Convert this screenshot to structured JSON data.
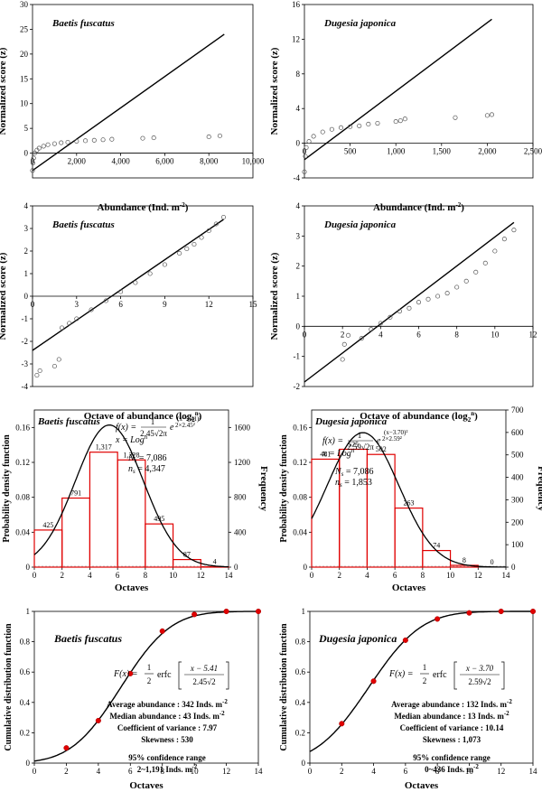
{
  "panels": {
    "p1": {
      "species": "Baetis fuscatus",
      "xlabel": "Abundance (Ind. m",
      "ylabel": "Normalized score (z)",
      "xticks": [
        "0",
        "2,000",
        "4,000",
        "6,000",
        "8,000",
        "10,000"
      ],
      "yticks": [
        "0",
        "5",
        "10",
        "15",
        "20",
        "25",
        "30"
      ]
    },
    "p2": {
      "species": "Dugesia japonica",
      "xlabel": "Abundance (Ind. m",
      "ylabel": "Normalized score (z)",
      "xticks": [
        "0",
        "500",
        "1,000",
        "1,500",
        "2,000",
        "2,500"
      ],
      "yticks": [
        "-4",
        "0",
        "4",
        "8",
        "12",
        "16"
      ]
    },
    "p3": {
      "species": "Baetis fuscatus",
      "xlabel": "Octave of abundance (log",
      "ylabel": "Normalized score (z)",
      "xticks": [
        "0",
        "3",
        "6",
        "9",
        "12",
        "15"
      ],
      "yticks": [
        "-4",
        "-3",
        "-2",
        "-1",
        "0",
        "1",
        "2",
        "3",
        "4"
      ]
    },
    "p4": {
      "species": "Dugesia japonica",
      "xlabel": "Octave of abundance (log",
      "ylabel": "Normalized score (z)",
      "xticks": [
        "0",
        "2",
        "4",
        "6",
        "8",
        "10",
        "12"
      ],
      "yticks": [
        "-2",
        "-1",
        "0",
        "1",
        "2",
        "3",
        "4"
      ]
    },
    "p5": {
      "species": "Baetis fuscatus",
      "xlabel": "Octaves",
      "ylabel": "Probability density function",
      "ylabel2": "Frequency",
      "xticks": [
        "0",
        "2",
        "4",
        "6",
        "8",
        "10",
        "12",
        "14"
      ],
      "yticks": [
        "0",
        "0.04",
        "0.08",
        "0.12",
        "0.16"
      ],
      "y2ticks": [
        "0",
        "400",
        "800",
        "1200",
        "1600"
      ],
      "fx": "f(x) =",
      "formula_coef": "2.45√2π",
      "x_def": "x = Log",
      "Ns": "N",
      "Ns_val": " = 7,086",
      "ns_val": " = 4,347"
    },
    "p6": {
      "species": "Dugesia japonica",
      "xlabel": "Octaves",
      "ylabel": "Probability density function",
      "ylabel2": "Frequency",
      "xticks": [
        "0",
        "2",
        "4",
        "6",
        "8",
        "10",
        "12",
        "14"
      ],
      "yticks": [
        "0",
        "0.04",
        "0.08",
        "0.12",
        "0.16"
      ],
      "y2ticks": [
        "0",
        "100",
        "200",
        "300",
        "400",
        "500",
        "600",
        "700"
      ],
      "fx": "f(x) =",
      "formula_coef": "2.59√2π",
      "x_def": "x = Log",
      "Ns_val": " = 7,086",
      "ns_val": " = 1,853"
    },
    "p7": {
      "species": "Baetis fuscatus",
      "xlabel": "Octaves",
      "ylabel": "Cumulative distribution function",
      "xticks": [
        "0",
        "2",
        "4",
        "6",
        "8",
        "10",
        "12",
        "14"
      ],
      "yticks": [
        "0",
        "0.2",
        "0.4",
        "0.6",
        "0.8",
        "1"
      ],
      "Fx": "F(x) =",
      "erfc": "erfc",
      "num": "x − 5.41",
      "den": "2.45√2",
      "stats": [
        "Average abundance : 342 Inds. m",
        "Median abundance :    43 Inds. m",
        "Coefficient of variance : 7.97",
        "Skewness : 530"
      ],
      "ci_title": "95% confidence range",
      "ci": "2~1,191 Inds. m"
    },
    "p8": {
      "species": "Dugesia japonica",
      "xlabel": "Octaves",
      "ylabel": "Cumulative distribution function",
      "xticks": [
        "0",
        "2",
        "4",
        "6",
        "8",
        "10",
        "12",
        "14"
      ],
      "yticks": [
        "0",
        "0.2",
        "0.4",
        "0.6",
        "0.8",
        "1"
      ],
      "Fx": "F(x) =",
      "erfc": "erfc",
      "num": "x − 3.70",
      "den": "2.59√2",
      "stats": [
        "Average abundance : 132 Inds. m",
        "Median abundance :    13 Inds. m",
        "Coefficient of variance : 10.14",
        "Skewness : 1,073"
      ],
      "ci_title": "95% confidence range",
      "ci": "0~436 Inds. m"
    }
  },
  "chart_data": [
    {
      "type": "scatter",
      "title": "Baetis fuscatus",
      "xlabel": "Abundance (Ind. m-2)",
      "ylabel": "Normalized score (z)",
      "xlim": [
        0,
        10000
      ],
      "ylim": [
        -5,
        30
      ],
      "fit_line": {
        "x": [
          0,
          8700
        ],
        "y": [
          -3.5,
          24
        ]
      },
      "points": {
        "x": [
          0,
          20,
          50,
          100,
          200,
          300,
          500,
          700,
          1000,
          1300,
          1600,
          2000,
          2400,
          2800,
          3200,
          3600,
          5000,
          5500,
          8000,
          8500
        ],
        "y": [
          -3.5,
          -2,
          -1,
          0,
          0.6,
          1,
          1.4,
          1.7,
          1.9,
          2.1,
          2.2,
          2.4,
          2.5,
          2.6,
          2.7,
          2.8,
          3.0,
          3.1,
          3.3,
          3.5
        ]
      }
    },
    {
      "type": "scatter",
      "title": "Dugesia japonica",
      "xlabel": "Abundance (Ind. m-2)",
      "ylabel": "Normalized score (z)",
      "xlim": [
        0,
        2500
      ],
      "ylim": [
        -4,
        16
      ],
      "fit_line": {
        "x": [
          0,
          2050
        ],
        "y": [
          -1.9,
          14.3
        ]
      },
      "points": {
        "x": [
          0,
          10,
          20,
          50,
          100,
          200,
          300,
          400,
          500,
          600,
          700,
          800,
          1000,
          1050,
          1100,
          1650,
          2000,
          2050
        ],
        "y": [
          -3.3,
          -1.5,
          -0.5,
          0.2,
          0.8,
          1.3,
          1.6,
          1.8,
          1.9,
          2.0,
          2.2,
          2.3,
          2.5,
          2.6,
          2.8,
          2.95,
          3.2,
          3.3
        ]
      }
    },
    {
      "type": "scatter",
      "title": "Baetis fuscatus",
      "xlabel": "Octave of abundance (log2 n)",
      "ylabel": "Normalized score (z)",
      "xlim": [
        0,
        15
      ],
      "ylim": [
        -4,
        4
      ],
      "fit_line": {
        "x": [
          0,
          13
        ],
        "y": [
          -2.4,
          3.4
        ]
      },
      "points": {
        "x": [
          0.3,
          0.5,
          1.5,
          1.8,
          2,
          2.5,
          3,
          4,
          5,
          6,
          7,
          8,
          9,
          10,
          10.5,
          11,
          11.5,
          12,
          12.5,
          13
        ],
        "y": [
          -3.5,
          -3.3,
          -3.1,
          -2.8,
          -1.4,
          -1.2,
          -1,
          -0.6,
          -0.2,
          0.2,
          0.6,
          1.0,
          1.4,
          1.9,
          2.1,
          2.3,
          2.6,
          2.9,
          3.2,
          3.5
        ]
      }
    },
    {
      "type": "scatter",
      "title": "Dugesia japonica",
      "xlabel": "Octave of abundance (log2 n)",
      "ylabel": "Normalized score (z)",
      "xlim": [
        0,
        12
      ],
      "ylim": [
        -2,
        4
      ],
      "fit_line": {
        "x": [
          0,
          11
        ],
        "y": [
          -1.85,
          3.45
        ]
      },
      "points": {
        "x": [
          2,
          2.1,
          2.3,
          3,
          3.5,
          4,
          4.5,
          5,
          5.5,
          6,
          6.5,
          7,
          7.5,
          8,
          8.5,
          9,
          9.5,
          10,
          10.5,
          11
        ],
        "y": [
          -1.1,
          -0.6,
          -0.3,
          -0.4,
          -0.1,
          0.1,
          0.3,
          0.5,
          0.6,
          0.8,
          0.9,
          1.0,
          1.1,
          1.3,
          1.5,
          1.8,
          2.1,
          2.5,
          2.9,
          3.2
        ]
      }
    },
    {
      "type": "bar",
      "title": "Baetis fuscatus",
      "xlabel": "Octaves",
      "ylabel": "Probability density function",
      "ylabel2": "Frequency",
      "xlim": [
        0,
        14
      ],
      "ylim": [
        0,
        0.18
      ],
      "y2lim": [
        0,
        1800
      ],
      "categories": [
        "0-2",
        "2-4",
        "4-6",
        "6-8",
        "8-10",
        "10-12",
        "12-14"
      ],
      "values": [
        425,
        791,
        1317,
        1228,
        495,
        87,
        4
      ],
      "labels": [
        "425",
        "791",
        "1,317",
        "1,228",
        "495",
        "87",
        "4"
      ],
      "normal": {
        "mean": 5.41,
        "sd": 2.45
      }
    },
    {
      "type": "bar",
      "title": "Dugesia japonica",
      "xlabel": "Octaves",
      "ylabel": "Probability density function",
      "ylabel2": "Frequency",
      "xlim": [
        0,
        14
      ],
      "ylim": [
        0,
        0.18
      ],
      "y2lim": [
        0,
        700
      ],
      "categories": [
        "0-2",
        "2-4",
        "4-6",
        "6-8",
        "8-10",
        "10-12",
        "12-14"
      ],
      "values": [
        481,
        525,
        502,
        263,
        74,
        8,
        0
      ],
      "labels": [
        "481",
        "525",
        "502",
        "263",
        "74",
        "8",
        "0"
      ],
      "normal": {
        "mean": 3.7,
        "sd": 2.59
      }
    },
    {
      "type": "line",
      "title": "Baetis fuscatus",
      "xlabel": "Octaves",
      "ylabel": "Cumulative distribution function",
      "xlim": [
        0,
        14
      ],
      "ylim": [
        0,
        1
      ],
      "points": {
        "x": [
          2,
          4,
          6,
          8,
          10,
          12,
          14
        ],
        "y": [
          0.1,
          0.28,
          0.59,
          0.87,
          0.98,
          1.0,
          1.0
        ]
      },
      "normal": {
        "mean": 5.41,
        "sd": 2.45
      }
    },
    {
      "type": "line",
      "title": "Dugesia japonica",
      "xlabel": "Octaves",
      "ylabel": "Cumulative distribution function",
      "xlim": [
        0,
        14
      ],
      "ylim": [
        0,
        1
      ],
      "points": {
        "x": [
          2,
          4,
          6,
          8,
          10,
          12,
          14
        ],
        "y": [
          0.26,
          0.54,
          0.81,
          0.95,
          0.99,
          1.0,
          1.0
        ]
      },
      "normal": {
        "mean": 3.7,
        "sd": 2.59
      }
    }
  ]
}
